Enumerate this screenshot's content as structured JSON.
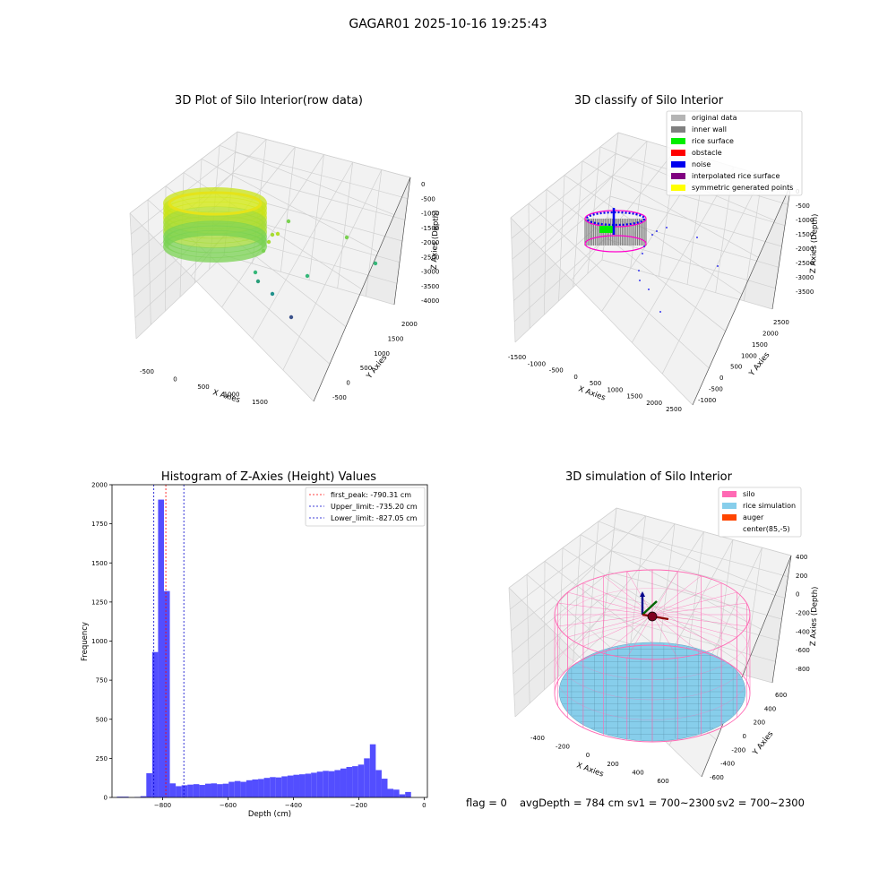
{
  "suptitle": "GAGAR01 2025-10-16 19:25:43",
  "status": {
    "flag": "flag = 0",
    "avg": "avgDepth = 784 cm",
    "sv1": "sv1 = 700~2300",
    "sv2": "sv2 = 700~2300"
  },
  "colors": {
    "hist_bar": "#4a44ff",
    "first_peak": "#ff0000",
    "limits": "#0000cc",
    "silo": "#ff69b4",
    "rice": "#87ceeb",
    "auger": "#ff4500",
    "noise": "#0000ee",
    "wall": "#808080",
    "rice_surface": "#00ee00"
  },
  "chart_data": [
    {
      "type": "scatter",
      "projection": "3d",
      "title": "3D Plot of Silo Interior(row data)",
      "xlabel": "X Axies",
      "ylabel": "Y Axies",
      "zlabel": "Z Axies (Depth)",
      "xticks": [
        "-500",
        "0",
        "500",
        "1000",
        "1500"
      ],
      "yticks": [
        "-500",
        "0",
        "500",
        "1000",
        "1500",
        "2000"
      ],
      "zticks": [
        "0",
        "-500",
        "-1000",
        "-1500",
        "-2000",
        "-2500",
        "-3000",
        "-3500",
        "-4000"
      ],
      "colormap": "viridis",
      "grid": true
    },
    {
      "type": "scatter",
      "projection": "3d",
      "title": "3D classify of Silo Interior",
      "xlabel": "X Axies",
      "ylabel": "Y Axies",
      "zlabel": "Z Axies (Depth)",
      "xticks": [
        "-1500",
        "-1000",
        "-500",
        "0",
        "500",
        "1000",
        "1500",
        "2000",
        "2500"
      ],
      "yticks": [
        "-1000",
        "-500",
        "0",
        "500",
        "1000",
        "1500",
        "2000",
        "2500"
      ],
      "zticks": [
        "0",
        "-500",
        "-1000",
        "-1500",
        "-2000",
        "-2500",
        "-3000",
        "-3500"
      ],
      "legend": {
        "position": "top-right",
        "entries": [
          {
            "label": "original data",
            "color": "#b4b4b4"
          },
          {
            "label": "inner wall",
            "color": "#808080"
          },
          {
            "label": "rice surface",
            "color": "#00ee00"
          },
          {
            "label": "obstacle",
            "color": "#ff0000"
          },
          {
            "label": "noise",
            "color": "#0000ee"
          },
          {
            "label": "interpolated rice surface",
            "color": "#800080"
          },
          {
            "label": "symmetric generated points",
            "color": "#ffff00"
          }
        ]
      },
      "grid": true
    },
    {
      "type": "bar",
      "title": "Histogram of Z-Axies (Height) Values",
      "xlabel": "Depth (cm)",
      "ylabel": "Frequency",
      "xlim": [
        -955,
        10
      ],
      "ylim": [
        0,
        2000
      ],
      "xticks": [
        -800,
        -600,
        -400,
        -200,
        0
      ],
      "yticks": [
        0,
        250,
        500,
        750,
        1000,
        1250,
        1500,
        1750,
        2000
      ],
      "bin_width": 18,
      "bin_left": [
        -940,
        -922,
        -904,
        -886,
        -868,
        -850,
        -832,
        -814,
        -796,
        -778,
        -760,
        -742,
        -724,
        -706,
        -688,
        -670,
        -652,
        -634,
        -616,
        -598,
        -580,
        -562,
        -544,
        -526,
        -508,
        -490,
        -472,
        -454,
        -436,
        -418,
        -400,
        -382,
        -364,
        -346,
        -328,
        -310,
        -292,
        -274,
        -256,
        -238,
        -220,
        -202,
        -184,
        -166,
        -148,
        -130,
        -112,
        -94,
        -76,
        -58,
        -40,
        -22,
        -4
      ],
      "values": [
        5,
        5,
        0,
        3,
        8,
        155,
        930,
        1905,
        1320,
        90,
        72,
        78,
        82,
        85,
        80,
        88,
        90,
        85,
        88,
        100,
        105,
        100,
        110,
        115,
        118,
        125,
        130,
        128,
        135,
        140,
        145,
        148,
        152,
        158,
        165,
        170,
        168,
        175,
        185,
        195,
        200,
        210,
        250,
        340,
        175,
        120,
        55,
        50,
        20,
        35,
        0,
        0,
        0
      ],
      "reference_lines": [
        {
          "label": "first_peak: -790.31 cm",
          "x": -790.31,
          "color": "#ff0000",
          "style": "dashed"
        },
        {
          "label": "Upper_limit: -735.20 cm",
          "x": -735.2,
          "color": "#0000cc",
          "style": "dashed"
        },
        {
          "label": "Lower_limit: -827.05 cm",
          "x": -827.05,
          "color": "#0000cc",
          "style": "dashed"
        }
      ],
      "legend": {
        "position": "top-right"
      },
      "grid": false
    },
    {
      "type": "surface",
      "projection": "3d",
      "title": "3D simulation of Silo Interior",
      "xlabel": "X Axies",
      "ylabel": "Y Axies",
      "zlabel": "Z Axies (Depth)",
      "xticks": [
        "-400",
        "-200",
        "0",
        "200",
        "400",
        "600"
      ],
      "yticks": [
        "-600",
        "-400",
        "-200",
        "0",
        "200",
        "400",
        "600"
      ],
      "zticks": [
        "400",
        "200",
        "0",
        "-200",
        "-400",
        "-600",
        "-800"
      ],
      "legend": {
        "position": "top-right",
        "entries": [
          {
            "label": "silo",
            "color": "#ff69b4"
          },
          {
            "label": "rice simulation",
            "color": "#87ceeb"
          },
          {
            "label": "auger",
            "color": "#ff4500"
          },
          {
            "label": "center(85,-5)",
            "color": ""
          }
        ]
      },
      "grid": true
    }
  ]
}
